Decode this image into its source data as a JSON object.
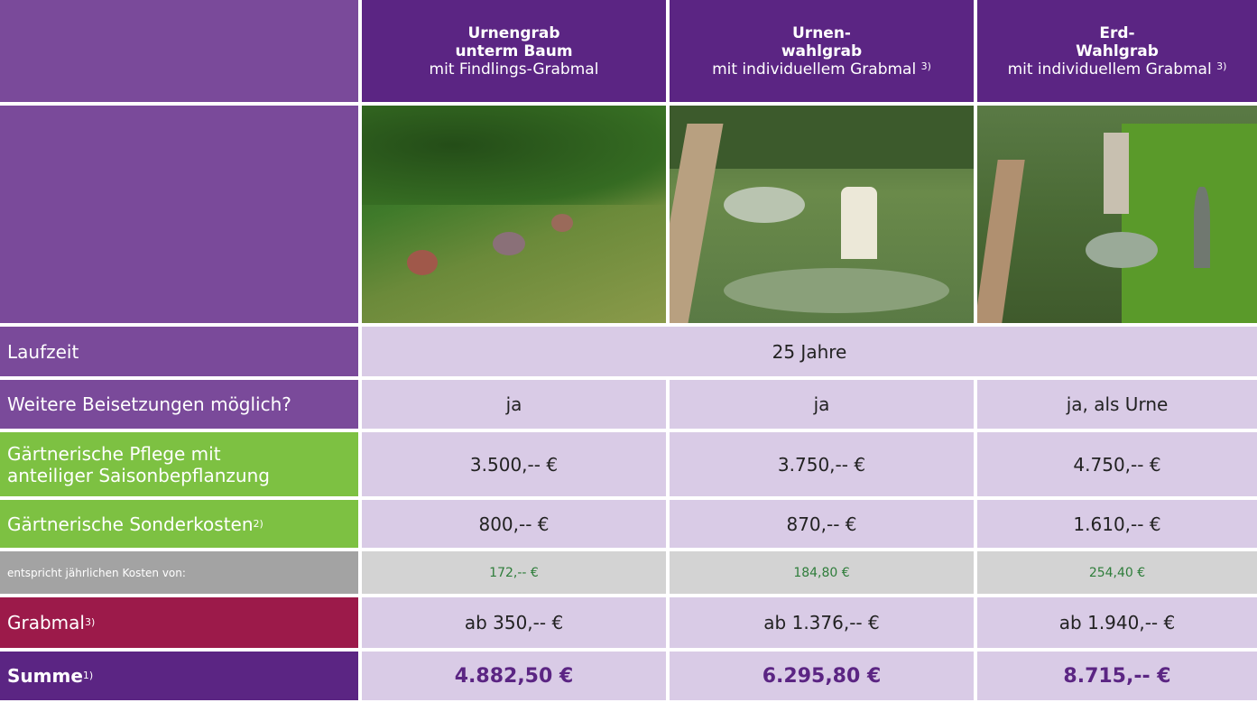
{
  "header": {
    "columns": [
      {
        "title_lines": [
          "Urnengrab",
          "unterm Baum"
        ],
        "subtitle": "mit Findlings-Grabmal"
      },
      {
        "title_lines": [
          "Urnen-",
          "wahlgrab"
        ],
        "subtitle": "mit individuellem Grabmal",
        "note": "3)"
      },
      {
        "title_lines": [
          "Erd-",
          "Wahlgrab"
        ],
        "subtitle": "mit individuellem Grabmal",
        "note": "3)"
      }
    ]
  },
  "rows": [
    {
      "label": "Laufzeit",
      "value": "25 Jahre"
    },
    {
      "label": "Weitere Beisetzungen möglich?",
      "cells": [
        "ja",
        "ja",
        "ja, als Urne"
      ]
    },
    {
      "label_lines": [
        "Gärtnerische Pflege mit",
        "anteiliger Saisonbepflanzung"
      ],
      "cells": [
        "3.500,-- €",
        "3.750,-- €",
        "4.750,-- €"
      ]
    },
    {
      "label": "Gärtnerische Sonderkosten",
      "label_note": "2)",
      "cells": [
        "800,-- €",
        "870,-- €",
        "1.610,-- €"
      ]
    },
    {
      "label": "entspricht jährlichen Kosten von:",
      "cells": [
        "172,-- €",
        "184,80 €",
        "254,40 €"
      ]
    },
    {
      "label": "Grabmal",
      "label_note": "3)",
      "cells": [
        "ab 350,-- €",
        "ab 1.376,-- €",
        "ab 1.940,-- €"
      ]
    },
    {
      "label": "Summe",
      "label_note": "1)",
      "cells": [
        "4.882,50 €",
        "6.295,80 €",
        "8.715,-- €"
      ]
    }
  ]
}
